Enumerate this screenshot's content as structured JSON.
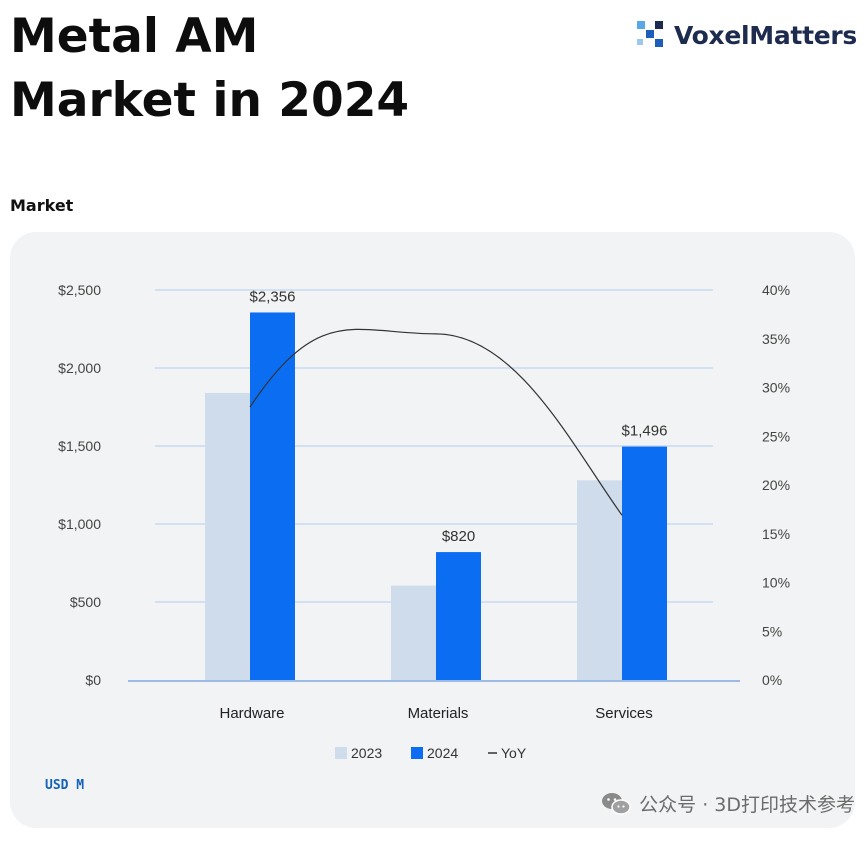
{
  "header": {
    "title_line1": "Metal AM",
    "title_line2": "Market in 2024",
    "brand_name": "VoxelMatters",
    "brand_icon": "voxel-logo-icon"
  },
  "section_label": "Market",
  "unit_note": "USD M",
  "watermark": {
    "text": "公众号 · 3D打印技术参考",
    "icon": "wechat-icon"
  },
  "colors": {
    "series_2023": "#cfdcec",
    "series_2024": "#0a6df2",
    "yoy_line": "#333333",
    "grid": "#b4ccee",
    "axis_text": "#444444"
  },
  "chart_data": {
    "type": "bar",
    "categories": [
      "Hardware",
      "Materials",
      "Services"
    ],
    "series": [
      {
        "name": "2023",
        "values": [
          1840,
          605,
          1280
        ]
      },
      {
        "name": "2024",
        "values": [
          2356,
          820,
          1496
        ]
      }
    ],
    "data_labels": [
      "$2,356",
      "$820",
      "$1,496"
    ],
    "yoy": {
      "name": "YoY",
      "values": [
        28.0,
        35.5,
        16.9
      ],
      "axis": "right",
      "style": "smooth-line"
    },
    "ylim": [
      0,
      2500
    ],
    "y_ticks": [
      0,
      500,
      1000,
      1500,
      2000,
      2500
    ],
    "y_tick_labels": [
      "$0",
      "$500",
      "$1,000",
      "$1,500",
      "$2,000",
      "$2,500"
    ],
    "y2lim": [
      0,
      40
    ],
    "y2_ticks": [
      0,
      5,
      10,
      15,
      20,
      25,
      30,
      35,
      40
    ],
    "y2_tick_labels": [
      "0%",
      "5%",
      "10%",
      "15%",
      "20%",
      "25%",
      "30%",
      "35%",
      "40%"
    ],
    "legend": [
      "2023",
      "2024",
      "YoY"
    ],
    "legend_position": "bottom-center",
    "grid": true
  }
}
